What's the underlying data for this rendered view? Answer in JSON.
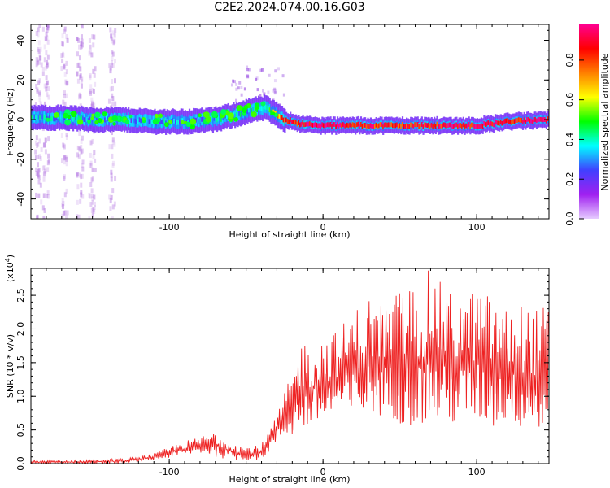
{
  "title": "C2E2.2024.074.00.16.G03",
  "chart_data": [
    {
      "type": "heatmap",
      "xlabel": "Height of straight line (km)",
      "ylabel": "Frequency (Hz)",
      "xlim": [
        -190,
        147
      ],
      "ylim": [
        -50,
        48
      ],
      "x_ticks": [
        -100,
        0,
        100
      ],
      "x_tick_labels": [
        "-100",
        "0",
        "100"
      ],
      "y_ticks": [
        -40,
        -20,
        0,
        20,
        40
      ],
      "y_tick_labels": [
        "-40",
        "-20",
        "0",
        "20",
        "40"
      ],
      "colorbar": {
        "label": "Normalized spectral amplitude",
        "range": [
          0,
          0.98
        ],
        "ticks": [
          0.0,
          0.2,
          0.4,
          0.6,
          0.8
        ],
        "tick_labels": [
          "0.0",
          "0.2",
          "0.4",
          "0.6",
          "0.8"
        ],
        "colors": [
          "#e6ccff",
          "#a020f0",
          "#4040ff",
          "#00ffff",
          "#00ff00",
          "#ffff00",
          "#ff8000",
          "#ff0000",
          "#ff0090"
        ]
      },
      "ridge": {
        "x": [
          -190,
          -170,
          -150,
          -130,
          -110,
          -90,
          -70,
          -55,
          -45,
          -38,
          -32,
          -25,
          -15,
          -5,
          5,
          20,
          40,
          60,
          80,
          100,
          120,
          147
        ],
        "y": [
          1,
          1,
          0,
          0,
          -1,
          -1,
          0,
          3,
          5,
          6,
          3,
          0,
          -2,
          -3,
          -3,
          -3,
          -3,
          -3,
          -3,
          -3,
          -1,
          0
        ],
        "amplitude": [
          0.35,
          0.35,
          0.3,
          0.3,
          0.3,
          0.3,
          0.35,
          0.35,
          0.4,
          0.45,
          0.6,
          0.85,
          0.9,
          0.95,
          0.95,
          0.9,
          0.85,
          0.85,
          0.9,
          0.9,
          0.9,
          0.95
        ]
      }
    },
    {
      "type": "line",
      "xlabel": "Height of straight line (km)",
      "ylabel": "SNR (10 * v/v)",
      "multiplier_label": "(x10",
      "multiplier_exp": "4",
      "multiplier_close": ")",
      "xlim": [
        -190,
        147
      ],
      "ylim": [
        0,
        2.9
      ],
      "x_ticks": [
        -100,
        0,
        100
      ],
      "x_tick_labels": [
        "-100",
        "0",
        "100"
      ],
      "y_ticks": [
        0.0,
        0.5,
        1.0,
        1.5,
        2.0,
        2.5
      ],
      "y_tick_labels": [
        "0.0",
        "0.5",
        "1.0",
        "1.5",
        "2.0",
        "2.5"
      ],
      "color": "#ee2222",
      "envelope": {
        "x": [
          -190,
          -160,
          -130,
          -110,
          -95,
          -80,
          -70,
          -60,
          -50,
          -40,
          -30,
          -25,
          -20,
          -15,
          -10,
          0,
          10,
          20,
          30,
          40,
          50,
          60,
          70,
          80,
          90,
          100,
          110,
          120,
          130,
          140,
          147
        ],
        "low": [
          0.0,
          0.0,
          0.0,
          0.05,
          0.1,
          0.15,
          0.1,
          0.05,
          0.05,
          0.05,
          0.3,
          0.4,
          0.4,
          0.45,
          0.5,
          0.6,
          0.7,
          0.6,
          0.7,
          0.7,
          0.6,
          0.5,
          0.6,
          0.5,
          0.6,
          0.6,
          0.5,
          0.6,
          0.5,
          0.4,
          0.5
        ],
        "high": [
          0.05,
          0.05,
          0.08,
          0.15,
          0.3,
          0.4,
          0.5,
          0.35,
          0.25,
          0.3,
          0.7,
          1.1,
          1.3,
          1.9,
          1.8,
          1.9,
          2.0,
          2.3,
          2.5,
          2.4,
          2.6,
          2.7,
          2.9,
          2.6,
          2.5,
          2.6,
          2.5,
          2.3,
          2.4,
          2.3,
          2.4
        ]
      }
    }
  ]
}
